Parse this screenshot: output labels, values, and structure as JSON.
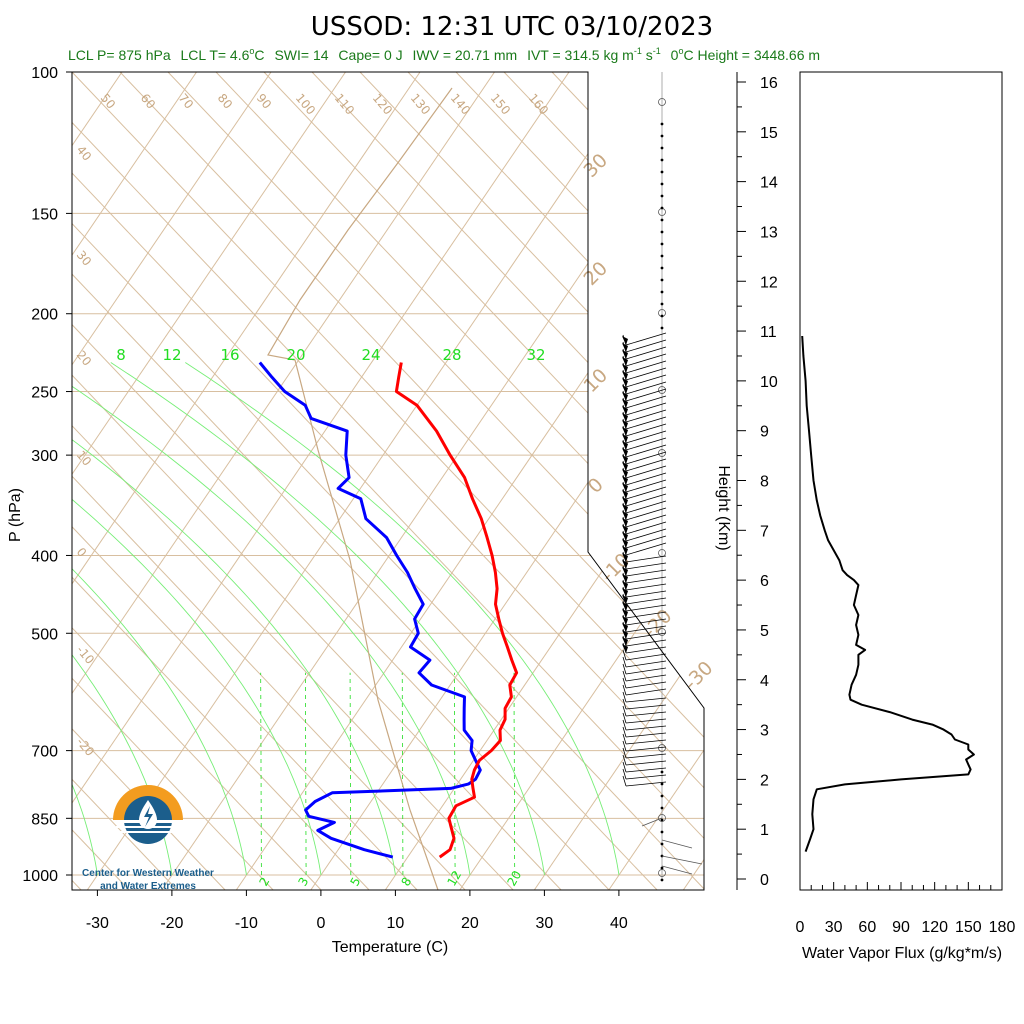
{
  "title": "USSOD: 12:31 UTC 03/10/2023",
  "subtitle": {
    "lcl_p": "LCL P= 875 hPa",
    "lcl_t": "LCL T= 4.6",
    "lcl_t_unit": "C",
    "swi": "SWI= 14",
    "cape": "Cape= 0 J",
    "iwv": "IWV = 20.71 mm",
    "ivt": "IVT = 314.5 kg m",
    "ivt_exp1": "-1",
    "ivt_s": " s",
    "ivt_exp2": "-1",
    "zero_label": "0",
    "zero_rest": "C Height = 3448.66 m"
  },
  "logo": {
    "line1": "Center for Western Weather",
    "line2": "and Water Extremes"
  },
  "colors": {
    "temperature": "#ff0000",
    "dewpoint": "#0000ff",
    "isotherm": "#d8bfa0",
    "mixing_ratio": "#22dd22",
    "logo_orange": "#f39c1f",
    "logo_teal": "#1b5e8c"
  },
  "chart_data": [
    {
      "type": "skew-t",
      "xlabel": "Temperature (C)",
      "ylabel": "P (hPa)",
      "right_ylabel": "Height (Km)",
      "log_scale_y": true,
      "x_ticks": [
        -30,
        -20,
        -10,
        0,
        10,
        20,
        30,
        40
      ],
      "p_ticks": [
        100,
        150,
        200,
        250,
        300,
        400,
        500,
        700,
        850,
        1000
      ],
      "height_ticks": [
        0,
        1,
        2,
        3,
        4,
        5,
        6,
        7,
        8,
        9,
        10,
        11,
        12,
        13,
        14,
        15,
        16
      ],
      "ylim": [
        1000,
        100
      ],
      "dry_adiabat_labels_top": [
        50,
        60,
        70,
        80,
        90,
        100,
        110,
        120,
        130,
        140,
        150,
        160
      ],
      "isotherm_labels_left": [
        40,
        30,
        20,
        10,
        0,
        -10,
        -20
      ],
      "isotherm_labels_right": [
        30,
        20,
        10,
        0,
        -10,
        -20,
        -30
      ],
      "moist_adiabat_labels": [
        8,
        12,
        16,
        20,
        24,
        28,
        32
      ],
      "mixing_ratio_labels": [
        2,
        3,
        5,
        8,
        12,
        20
      ],
      "series": [
        {
          "name": "Temperature",
          "pressure": [
            950,
            930,
            900,
            870,
            850,
            820,
            800,
            780,
            760,
            740,
            720,
            700,
            680,
            660,
            640,
            620,
            600,
            580,
            560,
            540,
            520,
            500,
            480,
            460,
            440,
            420,
            400,
            380,
            360,
            340,
            320,
            300,
            280,
            260,
            250,
            240,
            230
          ],
          "temp_c": [
            14.3,
            15.0,
            14.5,
            13.0,
            12.0,
            11.8,
            13.5,
            12.5,
            11.5,
            11.0,
            10.8,
            11.5,
            11.8,
            10.8,
            10.5,
            9.5,
            9.3,
            8.0,
            7.8,
            6.0,
            4.2,
            2.3,
            0.5,
            -1.3,
            -2.5,
            -4.2,
            -6.2,
            -8.5,
            -11.0,
            -14.0,
            -17.0,
            -21.0,
            -25.0,
            -30.0,
            -34.0,
            -35.0,
            -36.0
          ]
        },
        {
          "name": "Dewpoint",
          "pressure": [
            950,
            930,
            900,
            880,
            860,
            845,
            830,
            810,
            790,
            780,
            770,
            760,
            740,
            720,
            700,
            680,
            660,
            640,
            620,
            600,
            580,
            560,
            540,
            520,
            500,
            480,
            460,
            440,
            420,
            400,
            380,
            360,
            340,
            330,
            320,
            300,
            280,
            270,
            260,
            250,
            240,
            230
          ],
          "dewp_c": [
            8.0,
            3.5,
            -2.0,
            -4.5,
            -3.0,
            -7.0,
            -8.0,
            -7.5,
            -6.0,
            9.5,
            11.5,
            12.0,
            11.8,
            10.3,
            8.8,
            8.0,
            6.0,
            5.0,
            4.0,
            3.0,
            -2.5,
            -5.3,
            -5.0,
            -8.8,
            -9.0,
            -10.8,
            -11.0,
            -13.5,
            -16.0,
            -19.0,
            -22.0,
            -26.5,
            -29.0,
            -33.0,
            -32.5,
            -35.0,
            -37.0,
            -43.0,
            -45.0,
            -49.0,
            -52.0,
            -55.0
          ]
        }
      ]
    },
    {
      "type": "line",
      "xlabel": "Water Vapor Flux (g/kg*m/s)",
      "x_ticks": [
        0,
        30,
        60,
        90,
        120,
        150,
        180
      ],
      "xlim": [
        0,
        180
      ],
      "ylim": [
        0,
        16.5
      ],
      "series": [
        {
          "name": "Water Vapor Flux",
          "height_km": [
            0.55,
            0.8,
            1.0,
            1.3,
            1.6,
            1.8,
            1.9,
            2.0,
            2.1,
            2.2,
            2.3,
            2.4,
            2.5,
            2.6,
            2.7,
            2.8,
            2.9,
            3.0,
            3.1,
            3.2,
            3.35,
            3.5,
            3.6,
            3.7,
            3.9,
            4.1,
            4.3,
            4.5,
            4.6,
            4.7,
            4.9,
            5.1,
            5.3,
            5.5,
            5.7,
            5.9,
            6.0,
            6.1,
            6.2,
            6.4,
            6.6,
            6.8,
            7.0,
            7.3,
            7.6,
            8.0,
            8.5,
            9.0,
            9.5,
            10.0,
            10.5,
            10.9
          ],
          "flux": [
            5,
            9,
            12,
            11,
            12,
            15,
            40,
            90,
            150,
            152,
            150,
            148,
            155,
            150,
            150,
            138,
            135,
            128,
            118,
            100,
            80,
            55,
            45,
            44,
            46,
            50,
            52,
            52,
            58,
            50,
            52,
            50,
            52,
            48,
            50,
            52,
            48,
            42,
            38,
            35,
            30,
            25,
            22,
            18,
            15,
            12,
            10,
            8,
            6,
            5,
            3,
            2
          ]
        }
      ]
    }
  ]
}
